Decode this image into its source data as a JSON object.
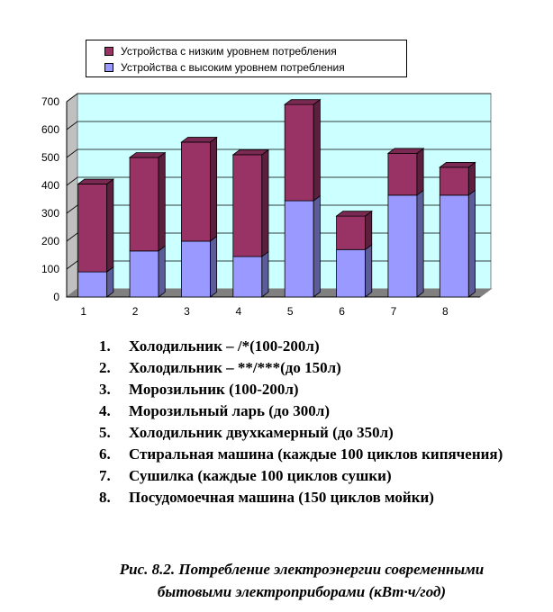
{
  "chart_data": {
    "type": "bar",
    "stacked": true,
    "three_d": true,
    "categories": [
      "1",
      "2",
      "3",
      "4",
      "5",
      "6",
      "7",
      "8"
    ],
    "series": [
      {
        "name": "Устройства с высоким уровнем потребления",
        "color": "#9999FF",
        "values": [
          90,
          165,
          200,
          145,
          345,
          170,
          365,
          365
        ]
      },
      {
        "name": "Устройства с низким уровнем потребления",
        "color": "#993366",
        "values": [
          315,
          335,
          355,
          365,
          345,
          120,
          150,
          100
        ]
      }
    ],
    "ylim": [
      0,
      700
    ],
    "yticks": [
      0,
      100,
      200,
      300,
      400,
      500,
      600,
      700
    ],
    "grid": true,
    "legend_position": "top",
    "plot_background": "#CCFFFF"
  },
  "legend": {
    "items": [
      {
        "label": "Устройства с низким уровнем потребления",
        "color": "#993366"
      },
      {
        "label": "Устройства с высоким уровнем потребления",
        "color": "#9999FF"
      }
    ]
  },
  "items": [
    {
      "num": "1.",
      "text": "Холодильник – /*(100-200л)"
    },
    {
      "num": "2.",
      "text": "Холодильник – **/***(до 150л)"
    },
    {
      "num": "3.",
      "text": "Морозильник (100-200л)"
    },
    {
      "num": "4.",
      "text": "Морозильный ларь (до 300л)"
    },
    {
      "num": "5.",
      "text": "Холодильник двухкамерный (до 350л)"
    },
    {
      "num": "6.",
      "text": "Стиральная машина (каждые 100 циклов кипячения)"
    },
    {
      "num": "7.",
      "text": "Сушилка (каждые 100 циклов сушки)"
    },
    {
      "num": "8.",
      "text": "Посудомоечная машина (150 циклов мойки)"
    }
  ],
  "caption": {
    "line1": "Рис. 8.2. Потребление электроэнергии современными",
    "line2": "бытовыми электроприборами (кВт·ч/год)"
  }
}
